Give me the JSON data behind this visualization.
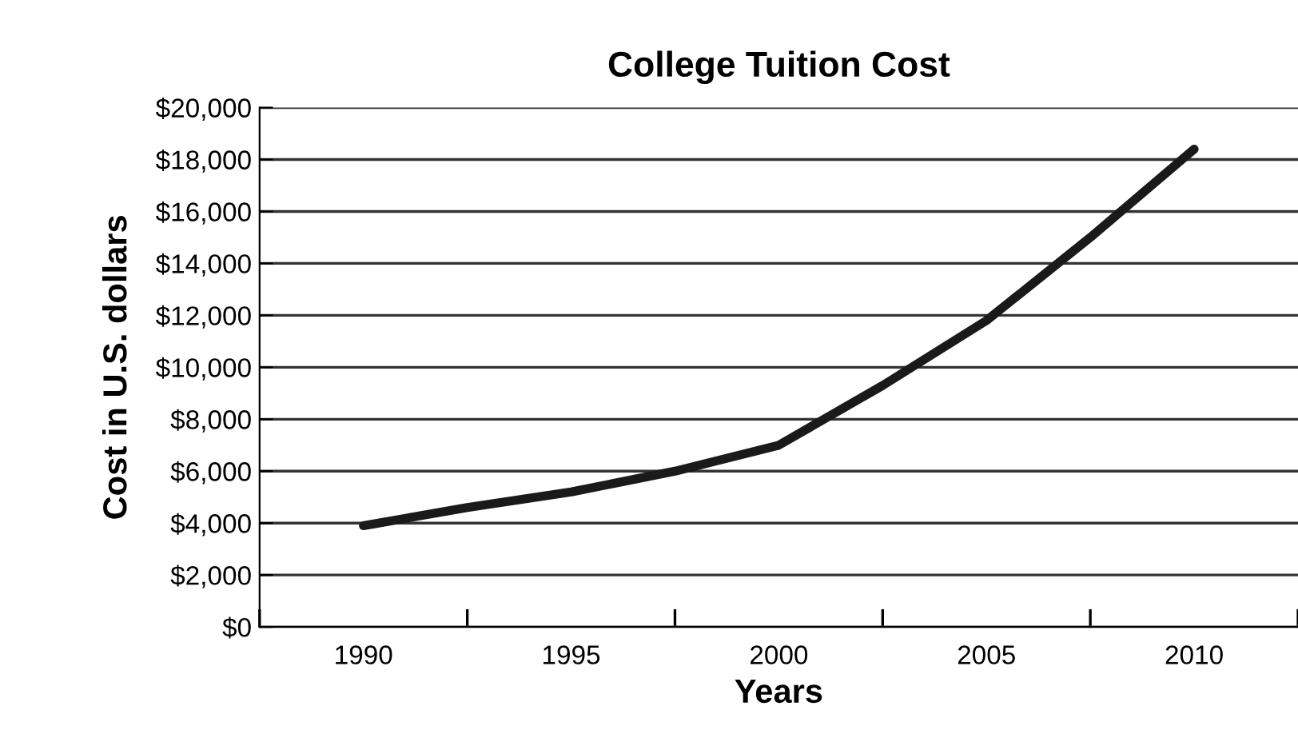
{
  "chart_data": {
    "type": "line",
    "title": "College Tuition Cost",
    "xlabel": "Years",
    "ylabel": "Cost in U.S. dollars",
    "series": [
      {
        "color": "#1a1a1a",
        "x": [
          1990,
          1992.5,
          1995,
          1997.5,
          2000,
          2002.5,
          2005,
          2007.5,
          2010
        ],
        "values": [
          3900,
          4600,
          5200,
          6000,
          7000,
          9300,
          11800,
          15000,
          18400
        ]
      }
    ],
    "xlim": [
      1987.5,
      2012.5
    ],
    "xticks": [
      {
        "value": 1987.5,
        "label": null
      },
      1990,
      {
        "value": 1992.5,
        "label": null
      },
      1995,
      {
        "value": 1997.5,
        "label": null
      },
      2000,
      {
        "value": 2002.5,
        "label": null
      },
      2005,
      {
        "value": 2007.5,
        "label": null
      },
      2010,
      {
        "value": 2012.5,
        "label": null
      }
    ],
    "ylim": [
      0,
      20000
    ],
    "yticks": [
      {
        "value": 0,
        "label": "$0"
      },
      {
        "value": 2000,
        "label": "$2,000"
      },
      {
        "value": 4000,
        "label": "$4,000"
      },
      {
        "value": 6000,
        "label": "$6,000"
      },
      {
        "value": 8000,
        "label": "$8,000"
      },
      {
        "value": 10000,
        "label": "$10,000"
      },
      {
        "value": 12000,
        "label": "$12,000"
      },
      {
        "value": 14000,
        "label": "$14,000"
      },
      {
        "value": 16000,
        "label": "$16,000"
      },
      {
        "value": 18000,
        "label": "$18,000"
      },
      {
        "value": 20000,
        "label": "$20,000"
      }
    ],
    "grid": "y",
    "marker": "none",
    "line_style": "solid"
  }
}
